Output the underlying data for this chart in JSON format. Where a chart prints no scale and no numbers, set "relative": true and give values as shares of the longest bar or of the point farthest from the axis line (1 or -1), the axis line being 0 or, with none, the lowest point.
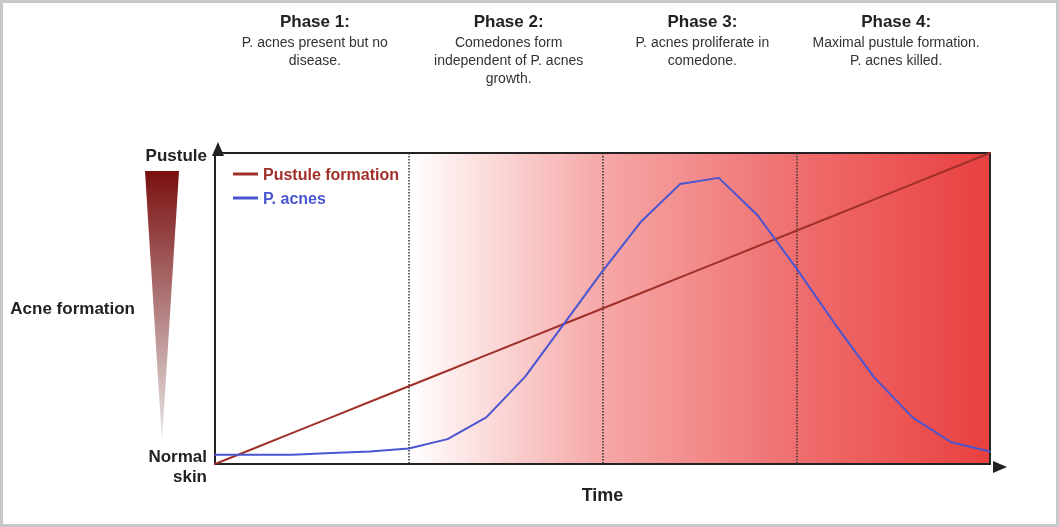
{
  "chart_data": {
    "type": "line",
    "xlabel": "Time",
    "ylabel": "Acne formation",
    "categories": [
      null,
      null,
      null,
      null,
      null,
      null,
      null,
      null,
      null,
      null,
      null,
      null,
      null,
      null,
      null,
      null,
      null,
      null,
      null,
      null,
      null
    ],
    "relative": true,
    "grid": "x",
    "legend": "top left",
    "marker": "none",
    "line_style": "solid",
    "series": [
      {
        "name": "Pustule formation",
        "color": "#a0302a",
        "values": [
          0,
          0.05,
          0.1,
          0.15,
          0.2,
          0.25,
          0.3,
          0.35,
          0.4,
          0.45,
          0.5,
          0.55,
          0.6,
          0.65,
          0.7,
          0.75,
          0.8,
          0.85,
          0.9,
          0.95,
          1
        ]
      },
      {
        "name": "P. acnes",
        "color": "#4a55d0",
        "values": [
          0.03,
          0.03,
          0.03,
          0.035,
          0.04,
          0.05,
          0.08,
          0.15,
          0.28,
          0.45,
          0.62,
          0.78,
          0.9,
          0.92,
          0.8,
          0.63,
          0.45,
          0.28,
          0.15,
          0.07,
          0.04
        ]
      }
    ],
    "annotations": [
      "Phase 1: P. acnes present but no disease.",
      "Phase 2: Comedones form independent of P. acnes growth.",
      "Phase 3: P. acnes proliferate in comedone.",
      "Phase 4: Maximal pustule formation. P. acnes killed.",
      "Pustule",
      "Normal skin"
    ]
  }
}
